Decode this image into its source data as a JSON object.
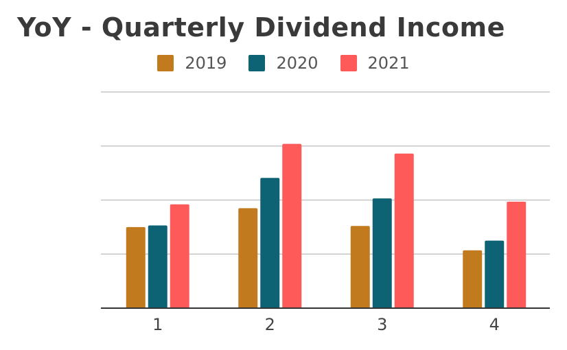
{
  "chart_data": {
    "type": "bar",
    "title": "YoY - Quarterly Dividend Income",
    "xlabel": "",
    "ylabel": "",
    "categories": [
      "1",
      "2",
      "3",
      "4"
    ],
    "series": [
      {
        "name": "2019",
        "color": "#c17a1e",
        "values": [
          1.5,
          1.85,
          1.52,
          1.07
        ]
      },
      {
        "name": "2020",
        "color": "#0d6373",
        "values": [
          1.53,
          2.41,
          2.03,
          1.25
        ]
      },
      {
        "name": "2021",
        "color": "#ff5a5a",
        "values": [
          1.92,
          3.04,
          2.86,
          1.97
        ]
      }
    ],
    "ylim": [
      0,
      4
    ],
    "y_tick_count": 4,
    "grid": true,
    "y_tick_labels_visible": false,
    "legend_position": "top"
  }
}
